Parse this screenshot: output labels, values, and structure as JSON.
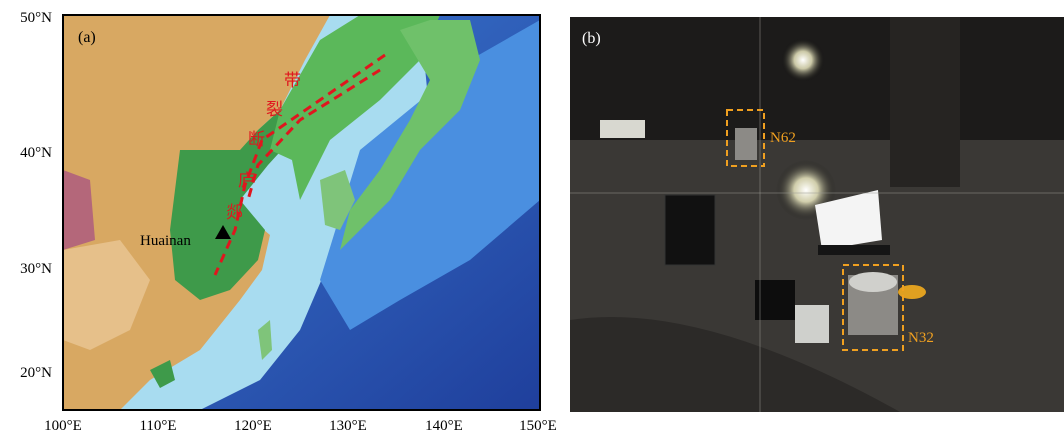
{
  "panel_a": {
    "label": "(a)",
    "lat_labels": [
      "50°N",
      "40°N",
      "30°N",
      "20°N"
    ],
    "lon_labels": [
      "100°E",
      "110°E",
      "120°E",
      "130°E",
      "140°E",
      "150°E"
    ],
    "site": "Huainan",
    "fault_chars": [
      "郯",
      "庐",
      "断",
      "裂",
      "带"
    ]
  },
  "panel_b": {
    "label": "(b)",
    "stations": [
      "N62",
      "N32"
    ]
  }
}
